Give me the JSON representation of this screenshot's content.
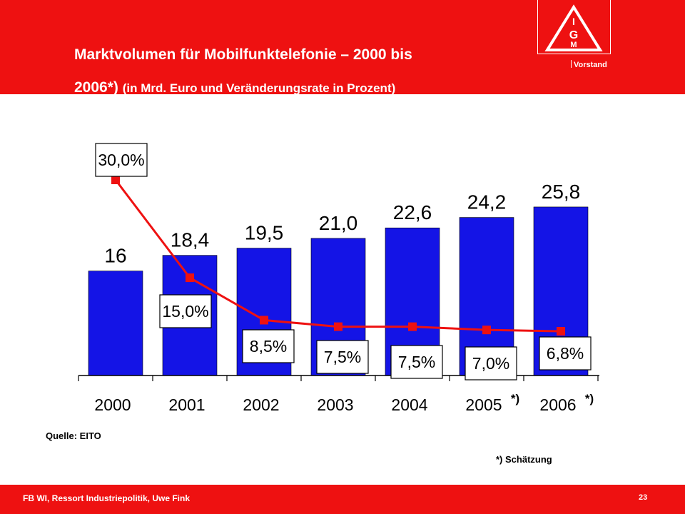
{
  "header": {
    "title_line1": "Marktvolumen für Mobilfunktelefonie – 2000 bis",
    "title_line2_main": "2006*)",
    "title_line2_sub": "(in Mrd. Euro und Veränderungsrate in Prozent)",
    "brand_label": "Vorstand",
    "logo_text": "IGM"
  },
  "colors": {
    "header_red": "#ee1111",
    "bar_blue": "#1414e6",
    "line_red": "#ee1111"
  },
  "chart_data": {
    "type": "bar",
    "categories": [
      "2000",
      "2001",
      "2002",
      "2003",
      "2004",
      "2005",
      "2006"
    ],
    "category_markers": [
      "",
      "",
      "",
      "",
      "",
      "*)",
      "*)"
    ],
    "series": [
      {
        "values": [
          16,
          18.4,
          19.5,
          21.0,
          22.6,
          24.2,
          25.8
        ],
        "labels": [
          "16",
          "18,4",
          "19,5",
          "21,0",
          "22,6",
          "24,2",
          "25,8"
        ]
      },
      {
        "values": [
          30.0,
          15.0,
          8.5,
          7.5,
          7.5,
          7.0,
          6.8
        ],
        "labels": [
          "30,0%",
          "15,0%",
          "8,5%",
          "7,5%",
          "7,5%",
          "7,0%",
          "6,8%"
        ]
      }
    ],
    "grid": false,
    "legend": "none"
  },
  "source": "Quelle: EITO",
  "note": "*) Schätzung",
  "footer": {
    "left": "FB WI, Ressort Industriepolitik, Uwe Fink",
    "page": "23"
  }
}
